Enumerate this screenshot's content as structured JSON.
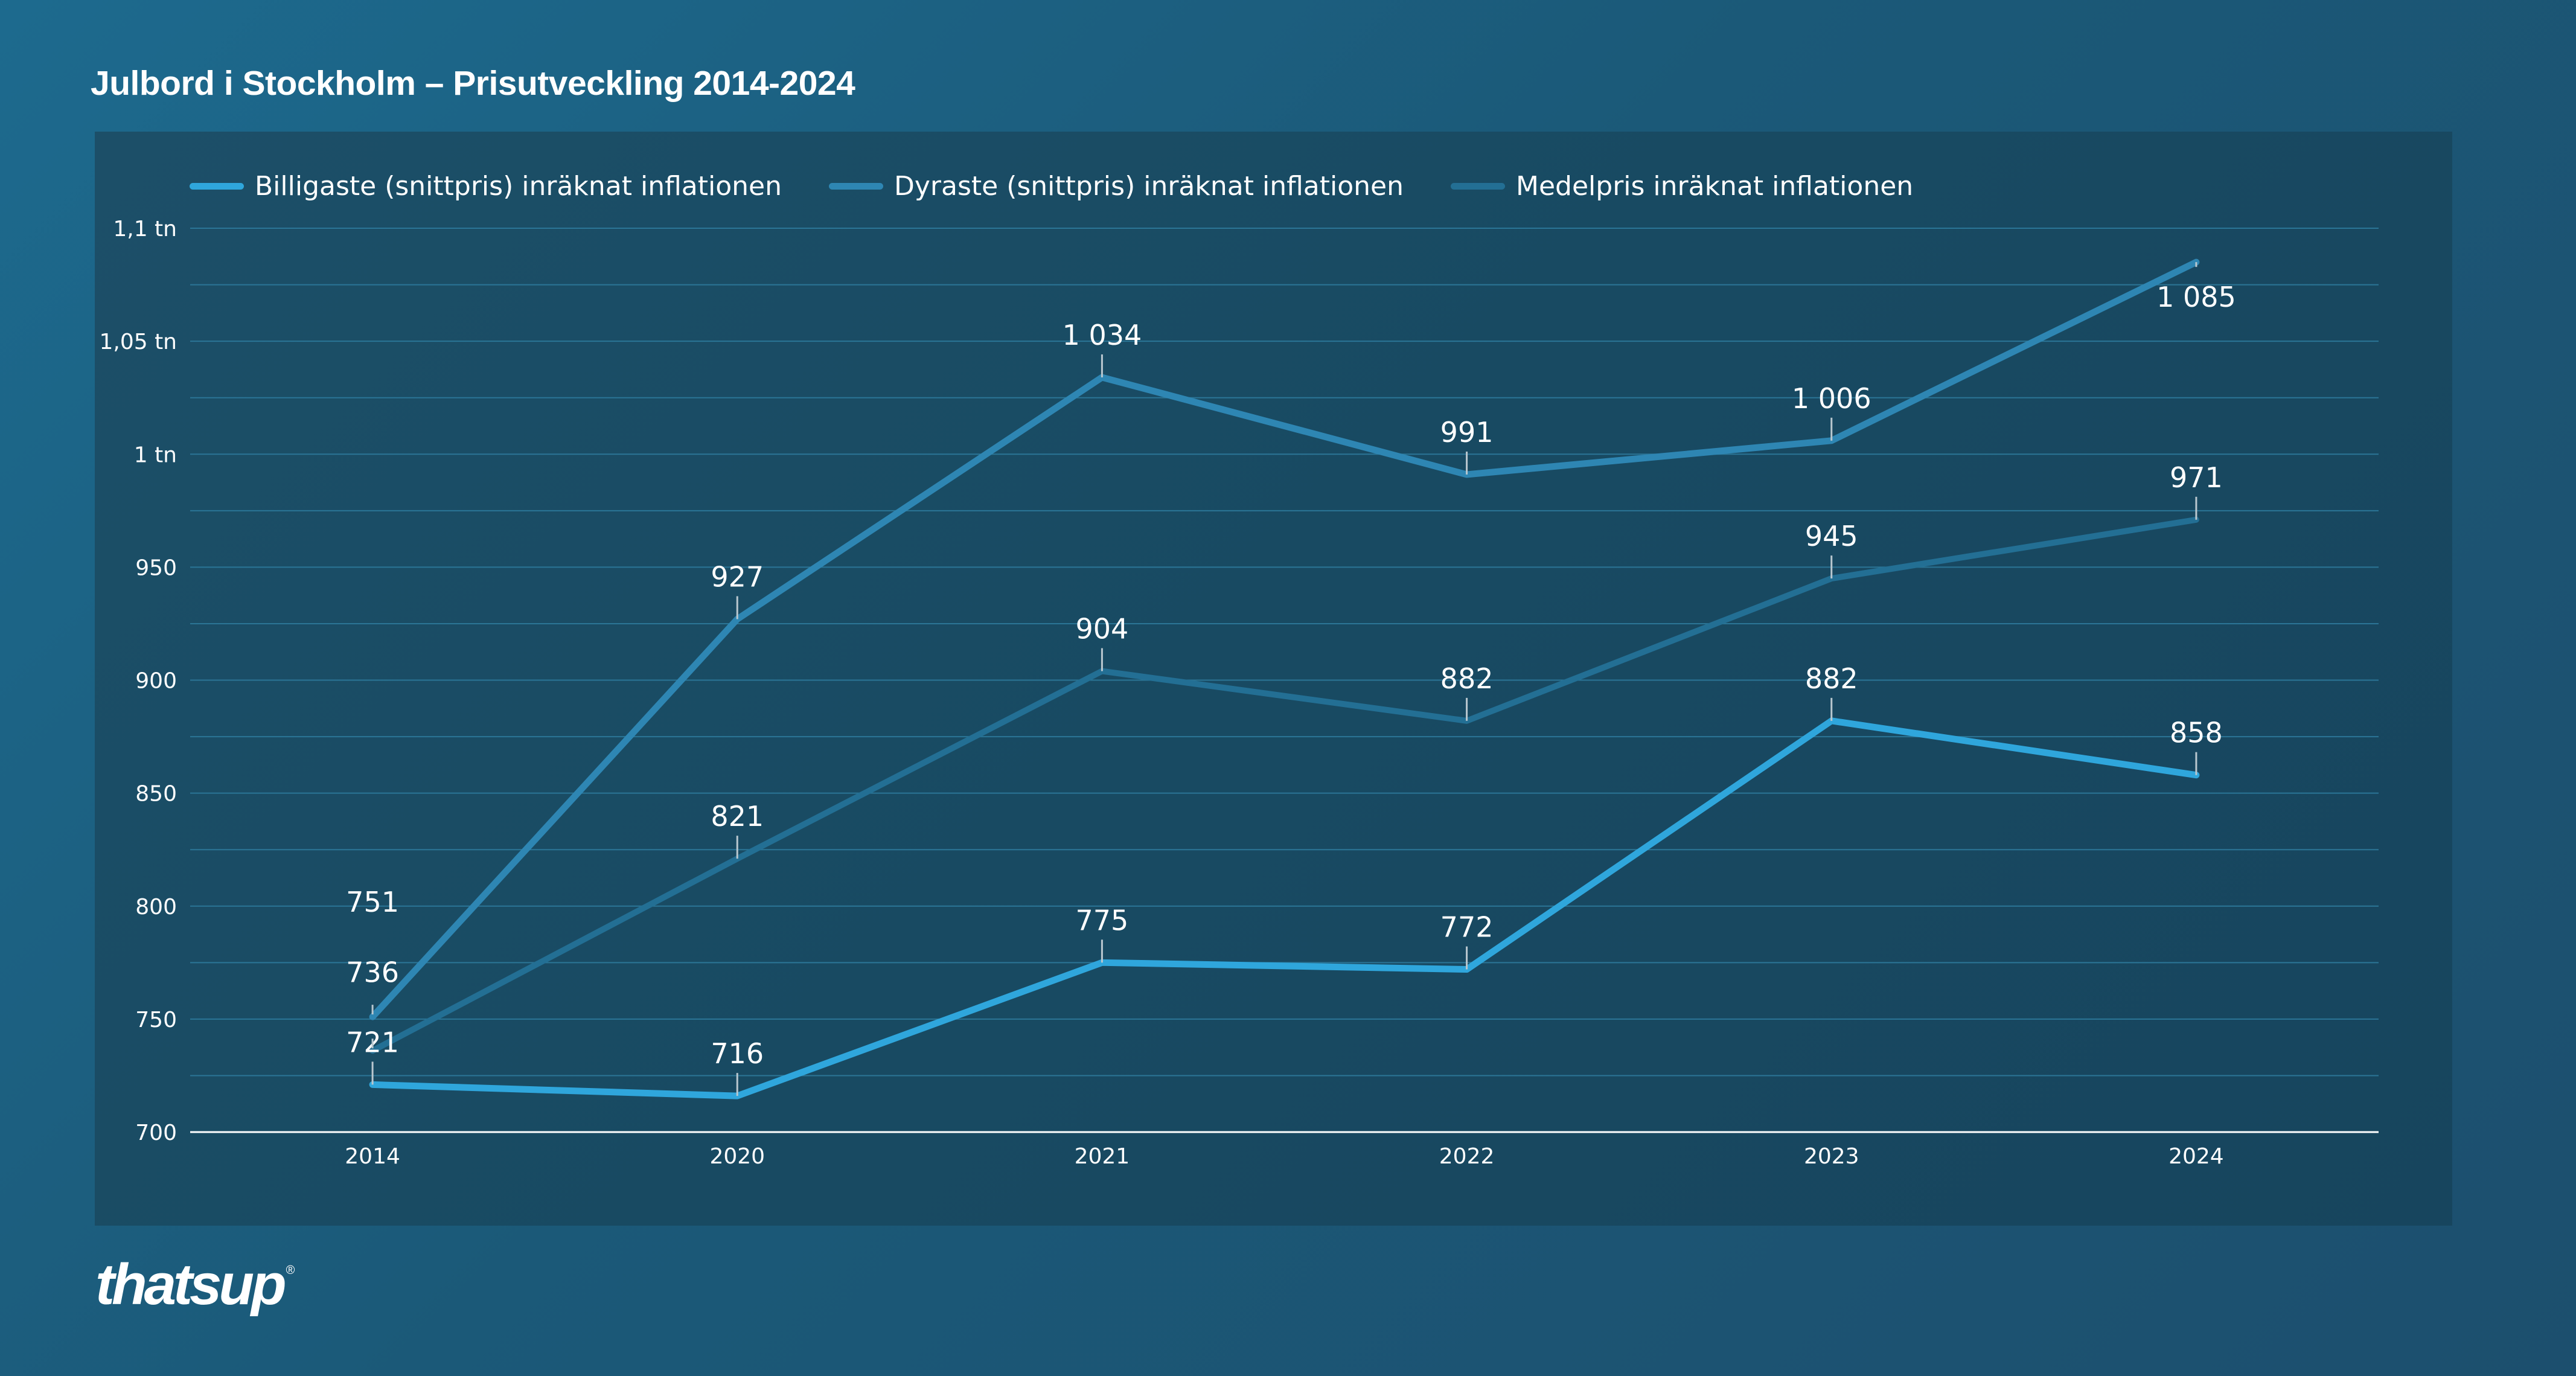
{
  "title": "Julbord i Stockholm – Prisutveckling 2014-2024",
  "logo": "thatsup",
  "colors": {
    "series_billigaste": "#2fa6dc",
    "series_dyraste": "#2e86b3",
    "series_medelpris": "#236f94",
    "gridline": "#2b7596",
    "axis": "#ffffff",
    "panel": "#1a4b63"
  },
  "chart_data": {
    "type": "line",
    "x": [
      "2014",
      "2020",
      "2021",
      "2022",
      "2023",
      "2024"
    ],
    "series": [
      {
        "name": "Billigaste (snittpris) inräknat inflationen",
        "values": [
          721,
          716,
          775,
          772,
          882,
          858
        ],
        "labels": [
          "721",
          "716",
          "775",
          "772",
          "882",
          "858"
        ]
      },
      {
        "name": "Dyraste (snittpris) inräknat inflationen",
        "values": [
          751,
          927,
          1034,
          991,
          1006,
          1085
        ],
        "labels": [
          "751",
          "927",
          "1 034",
          "991",
          "1 006",
          "1 085"
        ]
      },
      {
        "name": "Medelpris inräknat inflationen",
        "values": [
          736,
          821,
          904,
          882,
          945,
          971
        ],
        "labels": [
          "736",
          "821",
          "904",
          "882",
          "945",
          "971"
        ]
      }
    ],
    "yticks": [
      {
        "value": 700,
        "label": "700"
      },
      {
        "value": 750,
        "label": "750"
      },
      {
        "value": 800,
        "label": "800"
      },
      {
        "value": 850,
        "label": "850"
      },
      {
        "value": 900,
        "label": "900"
      },
      {
        "value": 950,
        "label": "950"
      },
      {
        "value": 1000,
        "label": "1 tn"
      },
      {
        "value": 1050,
        "label": "1,05 tn"
      },
      {
        "value": 1100,
        "label": "1,1 tn"
      }
    ],
    "ylim": [
      700,
      1100
    ],
    "grid": true,
    "legend": "top-left",
    "xlabel": "",
    "ylabel": ""
  }
}
